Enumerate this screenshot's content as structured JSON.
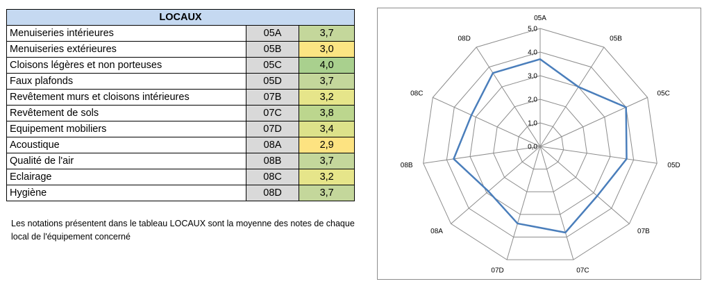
{
  "table": {
    "title": "LOCAUX",
    "rows": [
      {
        "label": "Menuiseries intérieures",
        "code": "05A",
        "value": "3,7",
        "color": "#c4d79b"
      },
      {
        "label": "Menuiseries extérieures",
        "code": "05B",
        "value": "3,0",
        "color": "#fbe583"
      },
      {
        "label": "Cloisons légères et non porteuses",
        "code": "05C",
        "value": "4,0",
        "color": "#a9d08e"
      },
      {
        "label": "Faux plafonds",
        "code": "05D",
        "value": "3,7",
        "color": "#c4d79b"
      },
      {
        "label": "Revêtement murs et cloisons intérieures",
        "code": "07B",
        "value": "3,2",
        "color": "#e6e58a"
      },
      {
        "label": "Revêtement de sols",
        "code": "07C",
        "value": "3,8",
        "color": "#bcd68e"
      },
      {
        "label": "Equipement mobiliers",
        "code": "07D",
        "value": "3,4",
        "color": "#dde28a"
      },
      {
        "label": "Acoustique",
        "code": "08A",
        "value": "2,9",
        "color": "#fde381"
      },
      {
        "label": "Qualité de l'air",
        "code": "08B",
        "value": "3,7",
        "color": "#c4d79b"
      },
      {
        "label": "Eclairage",
        "code": "08C",
        "value": "3,2",
        "color": "#e6e58a"
      },
      {
        "label": "Hygiène",
        "code": "08D",
        "value": "3,7",
        "color": "#c4d79b"
      }
    ]
  },
  "note": "Les notations présentent dans le tableau LOCAUX sont la moyenne des notes de chaque local de l'équipement concerné",
  "chart_data": {
    "type": "radar",
    "categories": [
      "05A",
      "05B",
      "05C",
      "05D",
      "07B",
      "07C",
      "07D",
      "08A",
      "08B",
      "08C",
      "08D"
    ],
    "series": [
      {
        "values": [
          3.7,
          3.0,
          4.0,
          3.7,
          3.2,
          3.8,
          3.4,
          2.9,
          3.7,
          3.2,
          3.7
        ],
        "color": "#4a7ebb"
      }
    ],
    "rlim": [
      0,
      5
    ],
    "ticks": [
      "0,0",
      "1,0",
      "2,0",
      "3,0",
      "4,0",
      "5,0"
    ],
    "grid": true,
    "grid_color": "#8c8c8c"
  }
}
